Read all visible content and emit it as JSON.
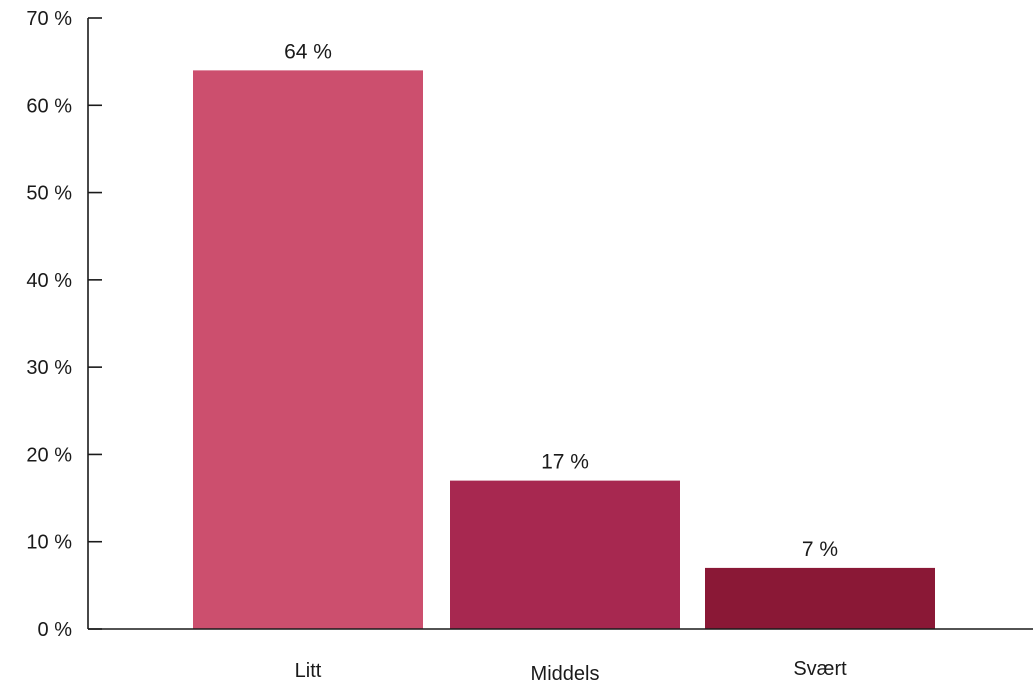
{
  "chart_data": {
    "type": "bar",
    "title": "",
    "xlabel": "",
    "ylabel": "",
    "categories": [
      "Litt",
      "Middels",
      "Svært"
    ],
    "values": [
      64,
      17,
      7
    ],
    "value_labels": [
      "64 %",
      "17 %",
      "7 %"
    ],
    "colors": [
      "#cc4f6e",
      "#a72850",
      "#8a1836"
    ],
    "ylim": [
      0,
      70
    ],
    "yticks": [
      0,
      10,
      20,
      30,
      40,
      50,
      60,
      70
    ],
    "ytick_labels": [
      "0 %",
      "10 %",
      "20 %",
      "30 %",
      "40 %",
      "50 %",
      "60 %",
      "70 %"
    ],
    "grid": false,
    "legend": "none"
  }
}
